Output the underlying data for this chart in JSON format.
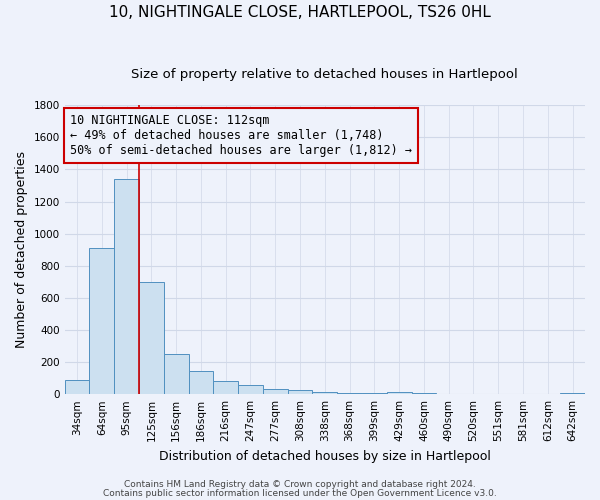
{
  "title": "10, NIGHTINGALE CLOSE, HARTLEPOOL, TS26 0HL",
  "subtitle": "Size of property relative to detached houses in Hartlepool",
  "xlabel": "Distribution of detached houses by size in Hartlepool",
  "ylabel": "Number of detached properties",
  "bar_labels": [
    "34sqm",
    "64sqm",
    "95sqm",
    "125sqm",
    "156sqm",
    "186sqm",
    "216sqm",
    "247sqm",
    "277sqm",
    "308sqm",
    "338sqm",
    "368sqm",
    "399sqm",
    "429sqm",
    "460sqm",
    "490sqm",
    "520sqm",
    "551sqm",
    "581sqm",
    "612sqm",
    "642sqm"
  ],
  "bar_values": [
    90,
    910,
    1340,
    700,
    250,
    145,
    80,
    55,
    30,
    25,
    15,
    10,
    5,
    13,
    5,
    0,
    0,
    0,
    0,
    0,
    5
  ],
  "bar_color": "#cce0f0",
  "bar_edgecolor": "#5090c0",
  "ylim": [
    0,
    1800
  ],
  "yticks": [
    0,
    200,
    400,
    600,
    800,
    1000,
    1200,
    1400,
    1600,
    1800
  ],
  "vline_x": 2.5,
  "vline_color": "#cc0000",
  "annotation_line1": "10 NIGHTINGALE CLOSE: 112sqm",
  "annotation_line2": "← 49% of detached houses are smaller (1,748)",
  "annotation_line3": "50% of semi-detached houses are larger (1,812) →",
  "footer_line1": "Contains HM Land Registry data © Crown copyright and database right 2024.",
  "footer_line2": "Contains public sector information licensed under the Open Government Licence v3.0.",
  "background_color": "#eef2fb",
  "grid_color": "#d0d8e8",
  "title_fontsize": 11,
  "subtitle_fontsize": 9.5,
  "annotation_fontsize": 8.5,
  "axis_label_fontsize": 9,
  "tick_fontsize": 7.5,
  "footer_fontsize": 6.5
}
